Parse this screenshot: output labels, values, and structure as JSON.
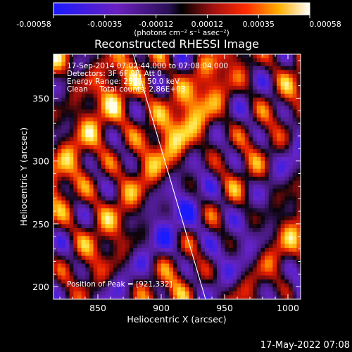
{
  "colorbar": {
    "ticks": [
      "-0.00058",
      "-0.00035",
      "-0.00012",
      "0.00012",
      "0.00035",
      "0.00058"
    ],
    "units": "(photons cm⁻² s⁻¹ asec⁻²)"
  },
  "chart_data": {
    "type": "heatmap",
    "title": "Reconstructed RHESSI Image",
    "xlabel": "Heliocentric X (arcsec)",
    "ylabel": "Heliocentric Y (arcsec)",
    "xlim": [
      815,
      1010
    ],
    "ylim": [
      190,
      385
    ],
    "xticks": [
      850,
      900,
      950,
      1000
    ],
    "yticks": [
      200,
      250,
      300,
      350
    ],
    "value_range": [
      -0.00058,
      0.00058
    ],
    "colormap": "blue-purple-red-orange-yellow-white",
    "limb_line": [
      [
        878,
        385
      ],
      [
        935,
        190
      ]
    ],
    "annotations": [
      "17-Sep-2014 07:02:44.000 to 07:08:04.000",
      "Detectors: 3F 6F 9F, Att 0",
      "Energy Range: 25.0 - 50.0 keV",
      "Clean     Total counts: 2.86E+03",
      "Position of Peak = [921,332]"
    ],
    "peak": [
      921,
      332
    ]
  },
  "footer": {
    "timestamp": "17-May-2022 07:08"
  },
  "colors": {
    "background": "#000000",
    "axes": "#ffffff",
    "bar_blue": "#1515ff",
    "bar_purple": "#7a1fb0",
    "bar_red": "#d21414",
    "bar_orange": "#ff8a00",
    "bar_yellow": "#ffee33"
  }
}
